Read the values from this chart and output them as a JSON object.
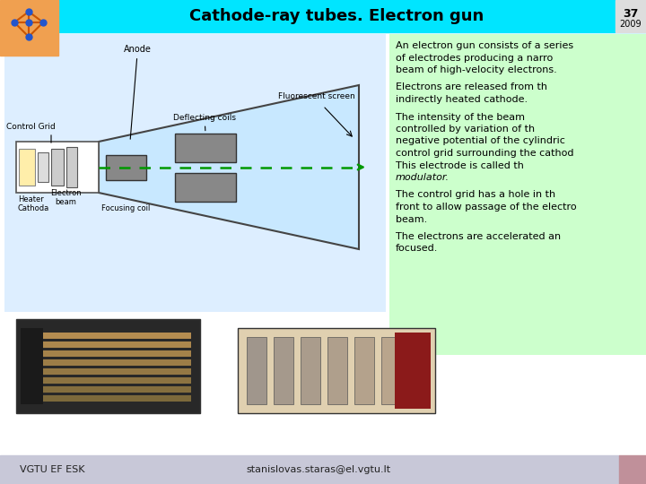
{
  "title": "Cathode-ray tubes. Electron gun",
  "slide_number": "37",
  "year": "2009",
  "logo_color": "#f0a050",
  "header_bg": "#00e5ff",
  "header_text_color": "#000000",
  "footer_text_left": "VGTU EF ESK",
  "footer_text_right": "stanislovas.staras@el.vgtu.lt",
  "footer_bg": "#c8c8d8",
  "footer_accent_color": "#c0909a",
  "text_panel_bg": "#ccffcc",
  "body_bg": "#ffffff",
  "diagram_bg": "#ddeeff",
  "paragraph1": "An electron gun consists of a series\nof electrodes producing a narro\nbeam of high-velocity electrons.",
  "paragraph2": "Electrons are released from th\nindirectly heated cathode.",
  "paragraph3": "The intensity of the beam\ncontrolled by variation of th\nnegative potential of the cylindric\ncontrol grid surrounding the cathod\nThis electrode is called th\nmodulator.",
  "paragraph3_italic": "modulator.",
  "paragraph4": "The control grid has a hole in th\nfront to allow passage of the electro\nbeam.",
  "paragraph5": "The electrons are accelerated an\nfocused.",
  "label_anode": "Anode",
  "label_deflecting": "Deflecting coils",
  "label_control_grid": "Control Grid",
  "label_fluorescent": "Fluorescent screen",
  "label_heater": "Heater",
  "label_cathode": "Cathoda",
  "label_electron_beam": "Electron\nbeam",
  "label_focusing": "Focusing coil"
}
